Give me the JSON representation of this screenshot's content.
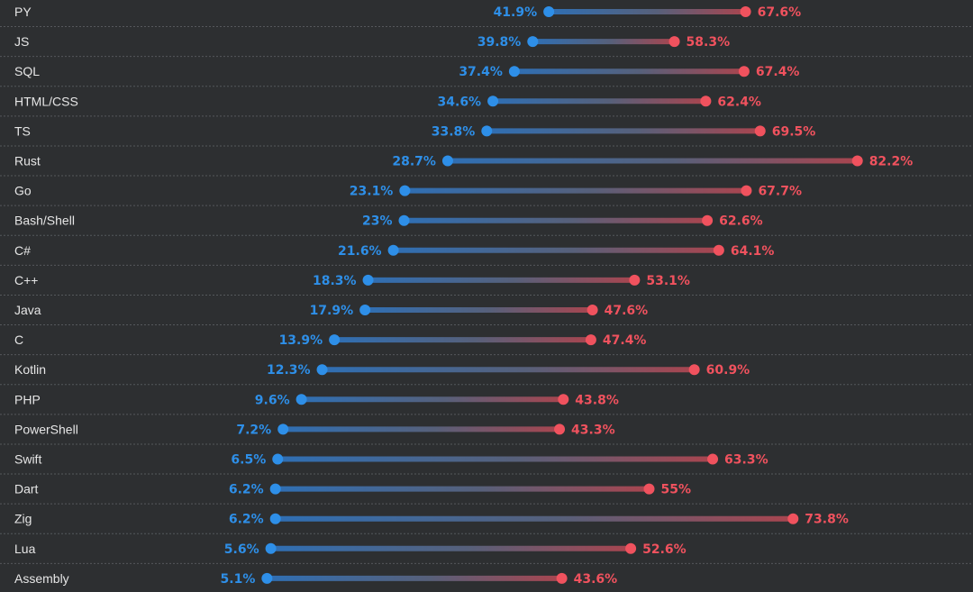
{
  "chart_data": {
    "type": "dumbbell",
    "title": "",
    "xlabel": "",
    "ylabel": "",
    "xlim": [
      0,
      100
    ],
    "colors": {
      "low": "#2e8fe8",
      "high": "#f0525e",
      "grid": "#55585c",
      "label": "#e6e6e6",
      "background": "#2d2f31"
    },
    "series": [
      {
        "name": "low",
        "color": "#2e8fe8"
      },
      {
        "name": "high",
        "color": "#f0525e"
      }
    ],
    "rows": [
      {
        "label": "PY",
        "low": 41.9,
        "low_text": "41.9%",
        "high": 67.6,
        "high_text": "67.6%"
      },
      {
        "label": "JS",
        "low": 39.8,
        "low_text": "39.8%",
        "high": 58.3,
        "high_text": "58.3%"
      },
      {
        "label": "SQL",
        "low": 37.4,
        "low_text": "37.4%",
        "high": 67.4,
        "high_text": "67.4%"
      },
      {
        "label": "HTML/CSS",
        "low": 34.6,
        "low_text": "34.6%",
        "high": 62.4,
        "high_text": "62.4%"
      },
      {
        "label": "TS",
        "low": 33.8,
        "low_text": "33.8%",
        "high": 69.5,
        "high_text": "69.5%"
      },
      {
        "label": "Rust",
        "low": 28.7,
        "low_text": "28.7%",
        "high": 82.2,
        "high_text": "82.2%"
      },
      {
        "label": "Go",
        "low": 23.1,
        "low_text": "23.1%",
        "high": 67.7,
        "high_text": "67.7%"
      },
      {
        "label": "Bash/Shell",
        "low": 23,
        "low_text": "23%",
        "high": 62.6,
        "high_text": "62.6%"
      },
      {
        "label": "C#",
        "low": 21.6,
        "low_text": "21.6%",
        "high": 64.1,
        "high_text": "64.1%"
      },
      {
        "label": "C++",
        "low": 18.3,
        "low_text": "18.3%",
        "high": 53.1,
        "high_text": "53.1%"
      },
      {
        "label": "Java",
        "low": 17.9,
        "low_text": "17.9%",
        "high": 47.6,
        "high_text": "47.6%"
      },
      {
        "label": "C",
        "low": 13.9,
        "low_text": "13.9%",
        "high": 47.4,
        "high_text": "47.4%"
      },
      {
        "label": "Kotlin",
        "low": 12.3,
        "low_text": "12.3%",
        "high": 60.9,
        "high_text": "60.9%"
      },
      {
        "label": "PHP",
        "low": 9.6,
        "low_text": "9.6%",
        "high": 43.8,
        "high_text": "43.8%"
      },
      {
        "label": "PowerShell",
        "low": 7.2,
        "low_text": "7.2%",
        "high": 43.3,
        "high_text": "43.3%"
      },
      {
        "label": "Swift",
        "low": 6.5,
        "low_text": "6.5%",
        "high": 63.3,
        "high_text": "63.3%"
      },
      {
        "label": "Dart",
        "low": 6.2,
        "low_text": "6.2%",
        "high": 55,
        "high_text": "55%"
      },
      {
        "label": "Zig",
        "low": 6.2,
        "low_text": "6.2%",
        "high": 73.8,
        "high_text": "73.8%"
      },
      {
        "label": "Lua",
        "low": 5.6,
        "low_text": "5.6%",
        "high": 52.6,
        "high_text": "52.6%"
      },
      {
        "label": "Assembly",
        "low": 5.1,
        "low_text": "5.1%",
        "high": 43.6,
        "high_text": "43.6%"
      }
    ]
  }
}
